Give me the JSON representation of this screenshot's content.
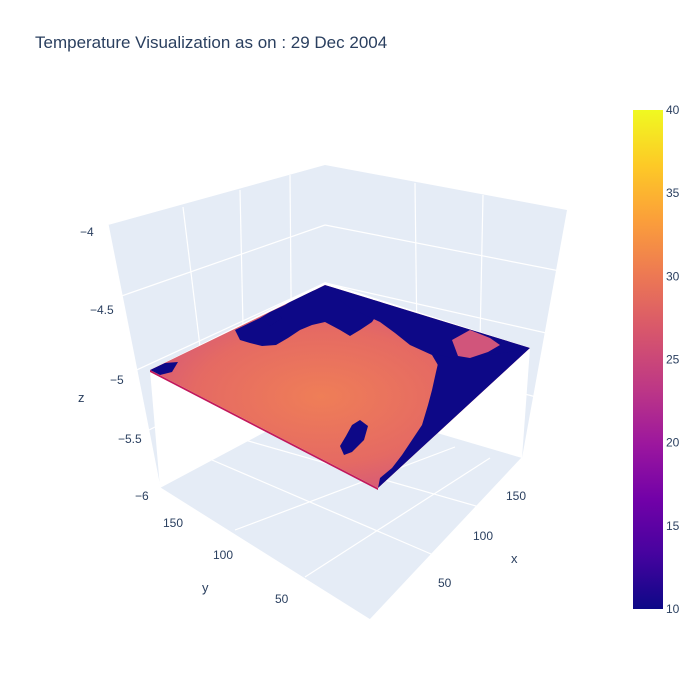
{
  "title": "Temperature Visualization as on : 29 Dec 2004",
  "chart_data": {
    "type": "surface",
    "title": "Temperature Visualization as on : 29 Dec 2004",
    "xlabel": "x",
    "ylabel": "y",
    "zlabel": "z",
    "x_ticks": [
      "50",
      "100",
      "150"
    ],
    "y_ticks": [
      "50",
      "100",
      "150"
    ],
    "z_ticks": [
      "−4",
      "−4.5",
      "−5",
      "−5.5",
      "−6"
    ],
    "zlim": [
      -6,
      -4
    ],
    "surface_z": -5,
    "colorscale": "plasma",
    "colorbar": {
      "min": 10,
      "max": 40,
      "ticks": [
        "10",
        "15",
        "20",
        "25",
        "30",
        "35",
        "40"
      ]
    },
    "colors": {
      "land": "#0d0887",
      "sea_warm": "#e8715a",
      "sea_mid": "#d1557b",
      "pane": "#e5ecf6",
      "grid": "#ffffff"
    }
  }
}
